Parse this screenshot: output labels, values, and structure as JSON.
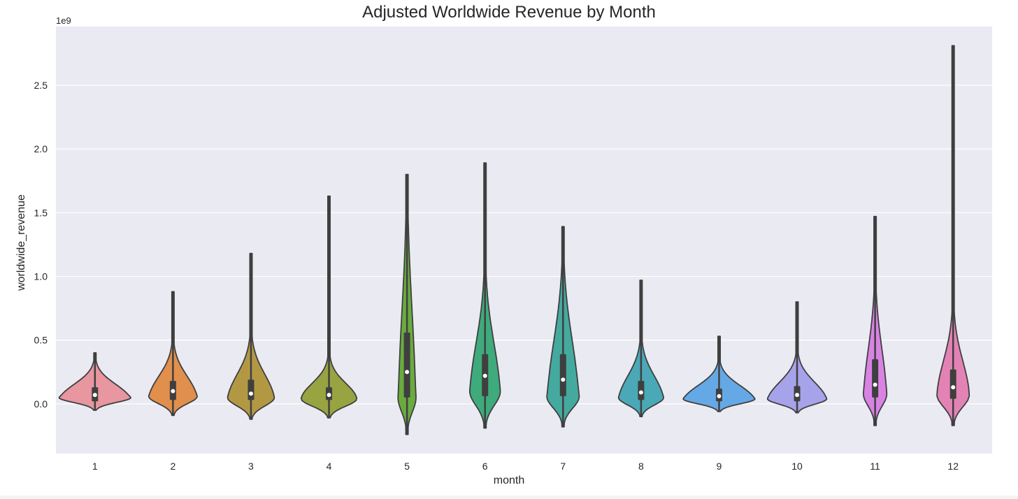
{
  "chart_data": {
    "type": "violin",
    "title": "Adjusted Worldwide Revenue by Month",
    "xlabel": "month",
    "ylabel": "worldwide_revenue",
    "y_offset_label": "1e9",
    "y_scale": 1000000000,
    "ylim": [
      -0.39,
      2.96
    ],
    "yticks": [
      0.0,
      0.5,
      1.0,
      1.5,
      2.0,
      2.5
    ],
    "ytick_labels": [
      "0.0",
      "0.5",
      "1.0",
      "1.5",
      "2.0",
      "2.5"
    ],
    "categories": [
      "1",
      "2",
      "3",
      "4",
      "5",
      "6",
      "7",
      "8",
      "9",
      "10",
      "11",
      "12"
    ],
    "grid": true,
    "background": "#eaeaf2",
    "colors": [
      "#e8969f",
      "#e08f4c",
      "#b39844",
      "#98a341",
      "#6aab3f",
      "#3fab7c",
      "#44aa9f",
      "#4aa8b7",
      "#64a9e6",
      "#a7a3ea",
      "#d883e4",
      "#e383b5"
    ],
    "violins": [
      {
        "category": "1",
        "min": -0.05,
        "q1": 0.02,
        "median": 0.07,
        "q3": 0.13,
        "max": 0.4,
        "mode": 0.05,
        "max_half_width": 0.4
      },
      {
        "category": "2",
        "min": -0.09,
        "q1": 0.03,
        "median": 0.1,
        "q3": 0.18,
        "max": 0.88,
        "mode": 0.06,
        "max_half_width": 0.27
      },
      {
        "category": "3",
        "min": -0.12,
        "q1": 0.03,
        "median": 0.08,
        "q3": 0.19,
        "max": 1.18,
        "mode": 0.05,
        "max_half_width": 0.26
      },
      {
        "category": "4",
        "min": -0.11,
        "q1": 0.03,
        "median": 0.07,
        "q3": 0.13,
        "max": 1.63,
        "mode": 0.04,
        "max_half_width": 0.31
      },
      {
        "category": "5",
        "min": -0.24,
        "q1": 0.05,
        "median": 0.25,
        "q3": 0.56,
        "max": 1.8,
        "mode": 0.05,
        "max_half_width": 0.1
      },
      {
        "category": "6",
        "min": -0.19,
        "q1": 0.06,
        "median": 0.22,
        "q3": 0.39,
        "max": 1.89,
        "mode": 0.1,
        "max_half_width": 0.17
      },
      {
        "category": "7",
        "min": -0.18,
        "q1": 0.06,
        "median": 0.19,
        "q3": 0.39,
        "max": 1.39,
        "mode": 0.06,
        "max_half_width": 0.18
      },
      {
        "category": "8",
        "min": -0.1,
        "q1": 0.03,
        "median": 0.09,
        "q3": 0.18,
        "max": 0.97,
        "mode": 0.05,
        "max_half_width": 0.25
      },
      {
        "category": "9",
        "min": -0.06,
        "q1": 0.02,
        "median": 0.06,
        "q3": 0.12,
        "max": 0.53,
        "mode": 0.04,
        "max_half_width": 0.4
      },
      {
        "category": "10",
        "min": -0.07,
        "q1": 0.02,
        "median": 0.07,
        "q3": 0.14,
        "max": 0.8,
        "mode": 0.04,
        "max_half_width": 0.33
      },
      {
        "category": "11",
        "min": -0.17,
        "q1": 0.05,
        "median": 0.15,
        "q3": 0.35,
        "max": 1.47,
        "mode": 0.08,
        "max_half_width": 0.13
      },
      {
        "category": "12",
        "min": -0.17,
        "q1": 0.04,
        "median": 0.13,
        "q3": 0.27,
        "max": 2.81,
        "mode": 0.07,
        "max_half_width": 0.18
      }
    ]
  }
}
